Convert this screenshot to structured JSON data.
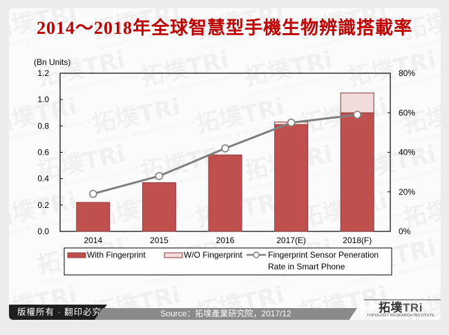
{
  "title": "2014～2018年全球智慧型手機生物辨識搭載率",
  "footer": {
    "copyright": "版權所有 · 翻印必究",
    "source": "Source：拓墣產業研究院，2017/12",
    "logo_main": "拓墣",
    "logo_tri": "TRi",
    "logo_sub": "TOPOLOGY RESEARCH INSTITUTE"
  },
  "colors": {
    "with_fingerprint": "#c0504d",
    "wo_fingerprint": "#f2dcdb",
    "bar_border": "#8b3a38",
    "line": "#7f7f7f",
    "title": "#c00000"
  },
  "chart_data": {
    "type": "bar",
    "title": "2014～2018年全球智慧型手機生物辨識搭載率",
    "categories": [
      "2014",
      "2015",
      "2016",
      "2017(E)",
      "2018(F)"
    ],
    "series": [
      {
        "name": "With Fingerprint",
        "type": "stacked-bar",
        "axis": "left",
        "values": [
          0.22,
          0.37,
          0.58,
          0.81,
          0.9
        ]
      },
      {
        "name": "W/O Fingerprint",
        "type": "stacked-bar",
        "axis": "left",
        "values": [
          0.0,
          0.0,
          0.0,
          0.02,
          0.15
        ]
      },
      {
        "name": "Fingerprint Sensor Peneration Rate in Smart Phone",
        "type": "line",
        "axis": "right",
        "values": [
          19,
          28,
          42,
          55,
          59
        ],
        "unit": "%"
      }
    ],
    "ylabel": "(Bn Units)",
    "ylim": [
      0,
      1.2
    ],
    "yticks": [
      "0.0",
      "0.2",
      "0.4",
      "0.6",
      "0.8",
      "1.0",
      "1.2"
    ],
    "y2lim": [
      0,
      80
    ],
    "y2ticks": [
      "0%",
      "20%",
      "40%",
      "60%",
      "80%"
    ],
    "legend_position": "bottom",
    "grid": false
  },
  "legend": {
    "with": "With Fingerprint",
    "wo": "W/O Fingerprint",
    "line_1": "Fingerprint Sensor Peneration",
    "line_2": "Rate in Smart Phone"
  }
}
